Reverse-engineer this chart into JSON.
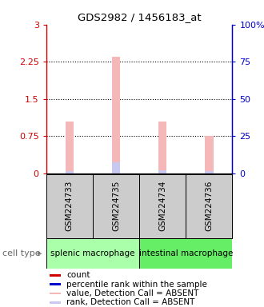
{
  "title": "GDS2982 / 1456183_at",
  "samples": [
    "GSM224733",
    "GSM224735",
    "GSM224734",
    "GSM224736"
  ],
  "group1_name": "splenic macrophage",
  "group2_name": "intestinal macrophage",
  "group_color1": "#aaffaa",
  "group_color2": "#66ee66",
  "bar_values": [
    1.05,
    2.35,
    1.05,
    0.75
  ],
  "rank_values": [
    0.05,
    0.22,
    0.06,
    0.04
  ],
  "bar_color": "#f4b8b8",
  "rank_color": "#c8c8f0",
  "count_color": "#cc0000",
  "percentile_color": "#0000cc",
  "ylim_left": [
    0,
    3
  ],
  "ylim_right": [
    0,
    100
  ],
  "yticks_left": [
    0,
    0.75,
    1.5,
    2.25,
    3
  ],
  "yticks_right": [
    0,
    25,
    50,
    75,
    100
  ],
  "ytick_labels_left": [
    "0",
    "0.75",
    "1.5",
    "2.25",
    "3"
  ],
  "ytick_labels_right": [
    "0",
    "25",
    "50",
    "75",
    "100%"
  ],
  "bar_width": 0.18,
  "sample_box_color": "#cccccc",
  "legend_colors": [
    "#cc0000",
    "#0000cc",
    "#f4b8b8",
    "#c8c8f0"
  ],
  "legend_labels": [
    "count",
    "percentile rank within the sample",
    "value, Detection Call = ABSENT",
    "rank, Detection Call = ABSENT"
  ]
}
